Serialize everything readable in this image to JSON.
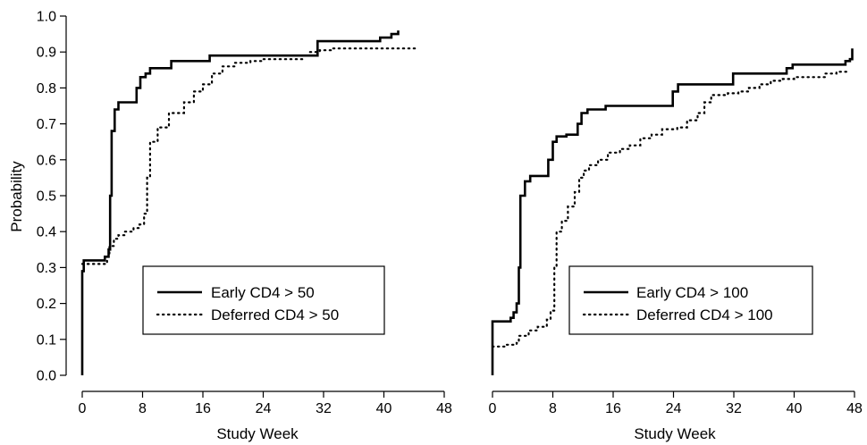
{
  "chart_data": [
    {
      "type": "line",
      "step": true,
      "title": "",
      "xlabel": "Study Week",
      "ylabel": "Probability",
      "xlim": [
        0,
        48
      ],
      "ylim": [
        0,
        1
      ],
      "xticks": [
        0,
        8,
        16,
        24,
        32,
        40,
        48
      ],
      "yticks": [
        0.0,
        0.1,
        0.2,
        0.3,
        0.4,
        0.5,
        0.6,
        0.7,
        0.8,
        0.9,
        1.0
      ],
      "ytick_labels": [
        "0.0",
        "0.1",
        "0.2",
        "0.3",
        "0.4",
        "0.5",
        "0.6",
        "0.7",
        "0.8",
        "0.9",
        "1.0"
      ],
      "grid": false,
      "legend_position": "center-right",
      "series": [
        {
          "name": "Early CD4 > 50",
          "style": "solid",
          "color": "#000000",
          "points": [
            [
              0,
              0
            ],
            [
              0,
              0.29
            ],
            [
              0.2,
              0.32
            ],
            [
              2.5,
              0.32
            ],
            [
              3.0,
              0.33
            ],
            [
              3.5,
              0.35
            ],
            [
              3.7,
              0.5
            ],
            [
              3.9,
              0.68
            ],
            [
              4.3,
              0.74
            ],
            [
              4.8,
              0.76
            ],
            [
              6.9,
              0.76
            ],
            [
              7.2,
              0.8
            ],
            [
              7.7,
              0.83
            ],
            [
              8.4,
              0.84
            ],
            [
              9.0,
              0.855
            ],
            [
              10.8,
              0.855
            ],
            [
              11.8,
              0.875
            ],
            [
              16.5,
              0.875
            ],
            [
              16.9,
              0.89
            ],
            [
              30.4,
              0.89
            ],
            [
              31.2,
              0.93
            ],
            [
              38.7,
              0.93
            ],
            [
              39.5,
              0.94
            ],
            [
              41.0,
              0.95
            ],
            [
              41.9,
              0.96
            ]
          ]
        },
        {
          "name": "Deferred CD4 > 50",
          "style": "dotted",
          "color": "#000000",
          "points": [
            [
              0,
              0.31
            ],
            [
              2.6,
              0.31
            ],
            [
              3.3,
              0.33
            ],
            [
              3.6,
              0.36
            ],
            [
              4.2,
              0.38
            ],
            [
              4.8,
              0.39
            ],
            [
              5.6,
              0.4
            ],
            [
              6.8,
              0.41
            ],
            [
              7.6,
              0.42
            ],
            [
              8.2,
              0.45
            ],
            [
              8.6,
              0.55
            ],
            [
              9.0,
              0.65
            ],
            [
              10.0,
              0.69
            ],
            [
              11.5,
              0.73
            ],
            [
              13.5,
              0.76
            ],
            [
              14.8,
              0.79
            ],
            [
              16.0,
              0.81
            ],
            [
              17.2,
              0.84
            ],
            [
              18.6,
              0.86
            ],
            [
              20.2,
              0.87
            ],
            [
              22.3,
              0.875
            ],
            [
              24.0,
              0.88
            ],
            [
              26.0,
              0.88
            ],
            [
              29.2,
              0.89
            ],
            [
              30.1,
              0.9
            ],
            [
              31.5,
              0.905
            ],
            [
              33.2,
              0.91
            ],
            [
              36.0,
              0.91
            ],
            [
              40.0,
              0.91
            ],
            [
              44.2,
              0.91
            ]
          ]
        }
      ]
    },
    {
      "type": "line",
      "step": true,
      "title": "",
      "xlabel": "Study Week",
      "ylabel": "",
      "xlim": [
        0,
        48
      ],
      "ylim": [
        0,
        1
      ],
      "xticks": [
        0,
        8,
        16,
        24,
        32,
        40,
        48
      ],
      "yticks": [
        0.0,
        0.1,
        0.2,
        0.3,
        0.4,
        0.5,
        0.6,
        0.7,
        0.8,
        0.9,
        1.0
      ],
      "grid": false,
      "legend_position": "center-right",
      "series": [
        {
          "name": "Early CD4 > 100",
          "style": "solid",
          "color": "#000000",
          "points": [
            [
              0,
              0
            ],
            [
              0,
              0.15
            ],
            [
              1.9,
              0.15
            ],
            [
              2.4,
              0.16
            ],
            [
              2.8,
              0.175
            ],
            [
              3.2,
              0.2
            ],
            [
              3.5,
              0.3
            ],
            [
              3.7,
              0.5
            ],
            [
              4.3,
              0.54
            ],
            [
              5.0,
              0.555
            ],
            [
              7.0,
              0.555
            ],
            [
              7.4,
              0.6
            ],
            [
              8.0,
              0.65
            ],
            [
              8.5,
              0.665
            ],
            [
              9.8,
              0.67
            ],
            [
              10.8,
              0.67
            ],
            [
              11.3,
              0.7
            ],
            [
              11.8,
              0.73
            ],
            [
              12.6,
              0.74
            ],
            [
              14.5,
              0.74
            ],
            [
              15.0,
              0.75
            ],
            [
              23.5,
              0.75
            ],
            [
              23.9,
              0.79
            ],
            [
              24.6,
              0.81
            ],
            [
              31.4,
              0.81
            ],
            [
              31.9,
              0.84
            ],
            [
              38.3,
              0.84
            ],
            [
              39.0,
              0.855
            ],
            [
              39.8,
              0.865
            ],
            [
              46.2,
              0.865
            ],
            [
              46.8,
              0.875
            ],
            [
              47.4,
              0.88
            ],
            [
              47.7,
              0.91
            ]
          ]
        },
        {
          "name": "Deferred CD4 > 100",
          "style": "dotted",
          "color": "#000000",
          "points": [
            [
              0,
              0.08
            ],
            [
              1.6,
              0.085
            ],
            [
              3.2,
              0.09
            ],
            [
              3.5,
              0.11
            ],
            [
              4.8,
              0.125
            ],
            [
              6.0,
              0.135
            ],
            [
              7.2,
              0.155
            ],
            [
              7.7,
              0.18
            ],
            [
              8.2,
              0.3
            ],
            [
              8.5,
              0.4
            ],
            [
              9.2,
              0.43
            ],
            [
              10.0,
              0.47
            ],
            [
              10.9,
              0.51
            ],
            [
              11.5,
              0.55
            ],
            [
              12.1,
              0.57
            ],
            [
              12.8,
              0.585
            ],
            [
              14.0,
              0.6
            ],
            [
              15.3,
              0.62
            ],
            [
              16.9,
              0.63
            ],
            [
              18.2,
              0.64
            ],
            [
              19.6,
              0.66
            ],
            [
              21.1,
              0.67
            ],
            [
              22.5,
              0.685
            ],
            [
              24.5,
              0.69
            ],
            [
              25.8,
              0.71
            ],
            [
              27.2,
              0.73
            ],
            [
              28.1,
              0.76
            ],
            [
              29.0,
              0.78
            ],
            [
              31.2,
              0.785
            ],
            [
              32.6,
              0.79
            ],
            [
              34.0,
              0.8
            ],
            [
              35.4,
              0.81
            ],
            [
              36.9,
              0.82
            ],
            [
              38.5,
              0.825
            ],
            [
              40.0,
              0.83
            ],
            [
              42.6,
              0.83
            ],
            [
              44.1,
              0.84
            ],
            [
              45.6,
              0.845
            ],
            [
              47.2,
              0.85
            ]
          ]
        }
      ]
    }
  ]
}
